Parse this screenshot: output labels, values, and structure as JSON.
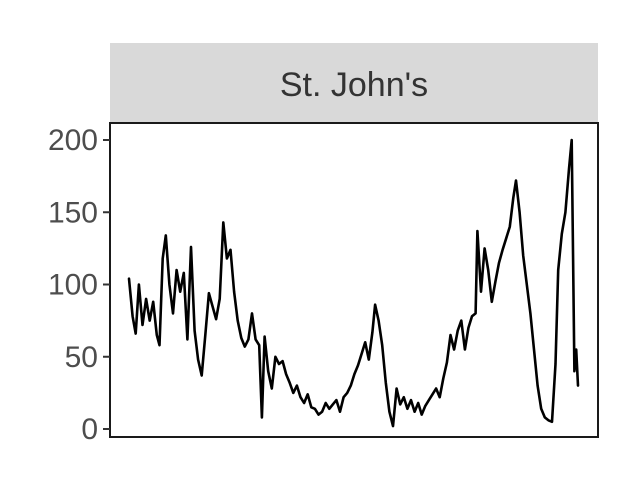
{
  "chart_data": {
    "type": "line",
    "facet_label": "St. John's",
    "ylim": [
      0,
      200
    ],
    "y_ticks": [
      0,
      50,
      100,
      150,
      200
    ],
    "x_ticks": [],
    "grid": false,
    "xlim": [
      0,
      100
    ],
    "series": [
      {
        "values": [
          [
            0,
            104
          ],
          [
            0.8,
            78
          ],
          [
            1.5,
            66
          ],
          [
            2.2,
            100
          ],
          [
            3,
            72
          ],
          [
            3.8,
            90
          ],
          [
            4.6,
            75
          ],
          [
            5.4,
            88
          ],
          [
            6.2,
            65
          ],
          [
            6.8,
            58
          ],
          [
            7.5,
            118
          ],
          [
            8.2,
            134
          ],
          [
            9,
            100
          ],
          [
            9.8,
            80
          ],
          [
            10.6,
            110
          ],
          [
            11.4,
            95
          ],
          [
            12.2,
            108
          ],
          [
            13,
            62
          ],
          [
            13.8,
            126
          ],
          [
            14.6,
            68
          ],
          [
            15.4,
            48
          ],
          [
            16.2,
            37
          ],
          [
            17,
            65
          ],
          [
            17.8,
            94
          ],
          [
            18.6,
            85
          ],
          [
            19.4,
            76
          ],
          [
            20.2,
            90
          ],
          [
            21,
            143
          ],
          [
            21.8,
            118
          ],
          [
            22.6,
            124
          ],
          [
            23.4,
            95
          ],
          [
            24.2,
            75
          ],
          [
            25,
            63
          ],
          [
            25.8,
            57
          ],
          [
            26.6,
            62
          ],
          [
            27.4,
            80
          ],
          [
            28.2,
            62
          ],
          [
            29,
            58
          ],
          [
            29.6,
            8
          ],
          [
            30.2,
            64
          ],
          [
            31,
            40
          ],
          [
            31.8,
            28
          ],
          [
            32.6,
            50
          ],
          [
            33.4,
            45
          ],
          [
            34.2,
            47
          ],
          [
            35,
            38
          ],
          [
            35.8,
            32
          ],
          [
            36.6,
            25
          ],
          [
            37.4,
            30
          ],
          [
            38.2,
            22
          ],
          [
            39,
            18
          ],
          [
            39.8,
            24
          ],
          [
            40.6,
            15
          ],
          [
            41.4,
            14
          ],
          [
            42.2,
            10
          ],
          [
            43,
            12
          ],
          [
            43.8,
            18
          ],
          [
            44.6,
            14
          ],
          [
            45.4,
            17
          ],
          [
            46.2,
            20
          ],
          [
            47,
            12
          ],
          [
            47.8,
            22
          ],
          [
            48.6,
            25
          ],
          [
            49.4,
            30
          ],
          [
            50.2,
            38
          ],
          [
            51,
            44
          ],
          [
            51.8,
            52
          ],
          [
            52.6,
            60
          ],
          [
            53.4,
            48
          ],
          [
            54.2,
            67
          ],
          [
            54.8,
            86
          ],
          [
            55.6,
            75
          ],
          [
            56.4,
            58
          ],
          [
            57.2,
            32
          ],
          [
            58,
            12
          ],
          [
            58.8,
            2
          ],
          [
            59.6,
            28
          ],
          [
            60.4,
            17
          ],
          [
            61.2,
            22
          ],
          [
            62,
            14
          ],
          [
            62.8,
            20
          ],
          [
            63.6,
            12
          ],
          [
            64.4,
            18
          ],
          [
            65.2,
            10
          ],
          [
            66,
            16
          ],
          [
            66.8,
            20
          ],
          [
            67.6,
            24
          ],
          [
            68.4,
            28
          ],
          [
            69.2,
            22
          ],
          [
            70,
            35
          ],
          [
            70.8,
            46
          ],
          [
            71.6,
            65
          ],
          [
            72.4,
            55
          ],
          [
            73.2,
            68
          ],
          [
            74,
            75
          ],
          [
            74.8,
            55
          ],
          [
            75.6,
            70
          ],
          [
            76.4,
            78
          ],
          [
            77.2,
            80
          ],
          [
            77.6,
            137
          ],
          [
            78.4,
            95
          ],
          [
            79.2,
            125
          ],
          [
            80,
            110
          ],
          [
            80.8,
            88
          ],
          [
            81.6,
            102
          ],
          [
            82.4,
            115
          ],
          [
            83.2,
            124
          ],
          [
            84,
            132
          ],
          [
            84.8,
            140
          ],
          [
            85.6,
            160
          ],
          [
            86.2,
            172
          ],
          [
            87,
            150
          ],
          [
            87.8,
            120
          ],
          [
            88.6,
            100
          ],
          [
            89.4,
            80
          ],
          [
            90.2,
            55
          ],
          [
            91,
            30
          ],
          [
            91.8,
            14
          ],
          [
            92.6,
            8
          ],
          [
            93.4,
            6
          ],
          [
            94.2,
            5
          ],
          [
            95,
            45
          ],
          [
            95.6,
            110
          ],
          [
            96.4,
            135
          ],
          [
            97.2,
            150
          ],
          [
            98,
            180
          ],
          [
            98.6,
            200
          ],
          [
            99.2,
            40
          ],
          [
            99.6,
            55
          ],
          [
            100,
            30
          ]
        ]
      }
    ]
  }
}
